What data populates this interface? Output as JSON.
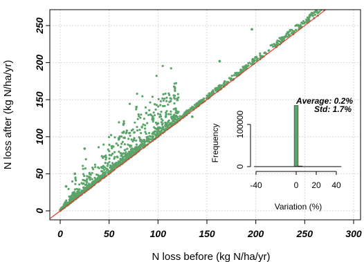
{
  "chart_data": [
    {
      "type": "scatter",
      "title": "",
      "xlabel": "N loss before (kg N/ha/yr)",
      "ylabel": "N loss after (kg N/ha/yr)",
      "xlim": [
        -10,
        305
      ],
      "ylim": [
        -8,
        272
      ],
      "x_ticks": [
        "0",
        "50",
        "100",
        "150",
        "200",
        "250",
        "300"
      ],
      "y_ticks": [
        "0",
        "50",
        "100",
        "150",
        "200",
        "250"
      ],
      "grid": true,
      "point_color": "#5aa469",
      "one_to_one_line_color": "#e8392b",
      "outliers": [
        {
          "x": 196,
          "y": 245
        },
        {
          "x": 163,
          "y": 202
        },
        {
          "x": 133,
          "y": 136
        },
        {
          "x": 135,
          "y": 127
        },
        {
          "x": 78,
          "y": 140
        },
        {
          "x": 95,
          "y": 123
        },
        {
          "x": 108,
          "y": 127
        },
        {
          "x": 118,
          "y": 138
        },
        {
          "x": 25,
          "y": 84
        },
        {
          "x": 15,
          "y": 50
        },
        {
          "x": 6,
          "y": 33
        },
        {
          "x": 65,
          "y": 118
        },
        {
          "x": 88,
          "y": 132
        },
        {
          "x": 60,
          "y": 98
        },
        {
          "x": 100,
          "y": 118
        }
      ]
    },
    {
      "type": "bar",
      "title": "",
      "xlabel": "Variation (%)",
      "ylabel": "Frequency",
      "x_ticks": [
        "-40",
        "0",
        "20",
        "40"
      ],
      "y_ticks": [
        "0",
        "100000"
      ],
      "xlim": [
        -45,
        45
      ],
      "ylim": [
        0,
        150000
      ],
      "bins": [
        {
          "x0": -2,
          "x1": 2,
          "count": 145000
        },
        {
          "x0": 2,
          "x1": 6,
          "count": 1500
        }
      ],
      "bar_color": "#5aa469",
      "annotations": [
        "Average: 0.2%",
        "Std: 1.7%"
      ]
    }
  ]
}
